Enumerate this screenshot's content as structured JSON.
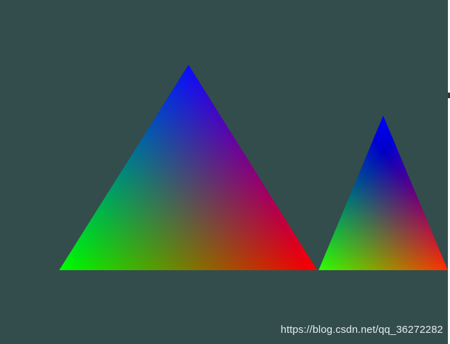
{
  "scene": {
    "background_color": "#334d4d",
    "vertex_colors": {
      "top": "#0000ff",
      "bottom_left": "#00ff00",
      "bottom_right": "#ff0000"
    }
  },
  "watermark": {
    "text": "https://blog.csdn.net/qq_36272282"
  }
}
